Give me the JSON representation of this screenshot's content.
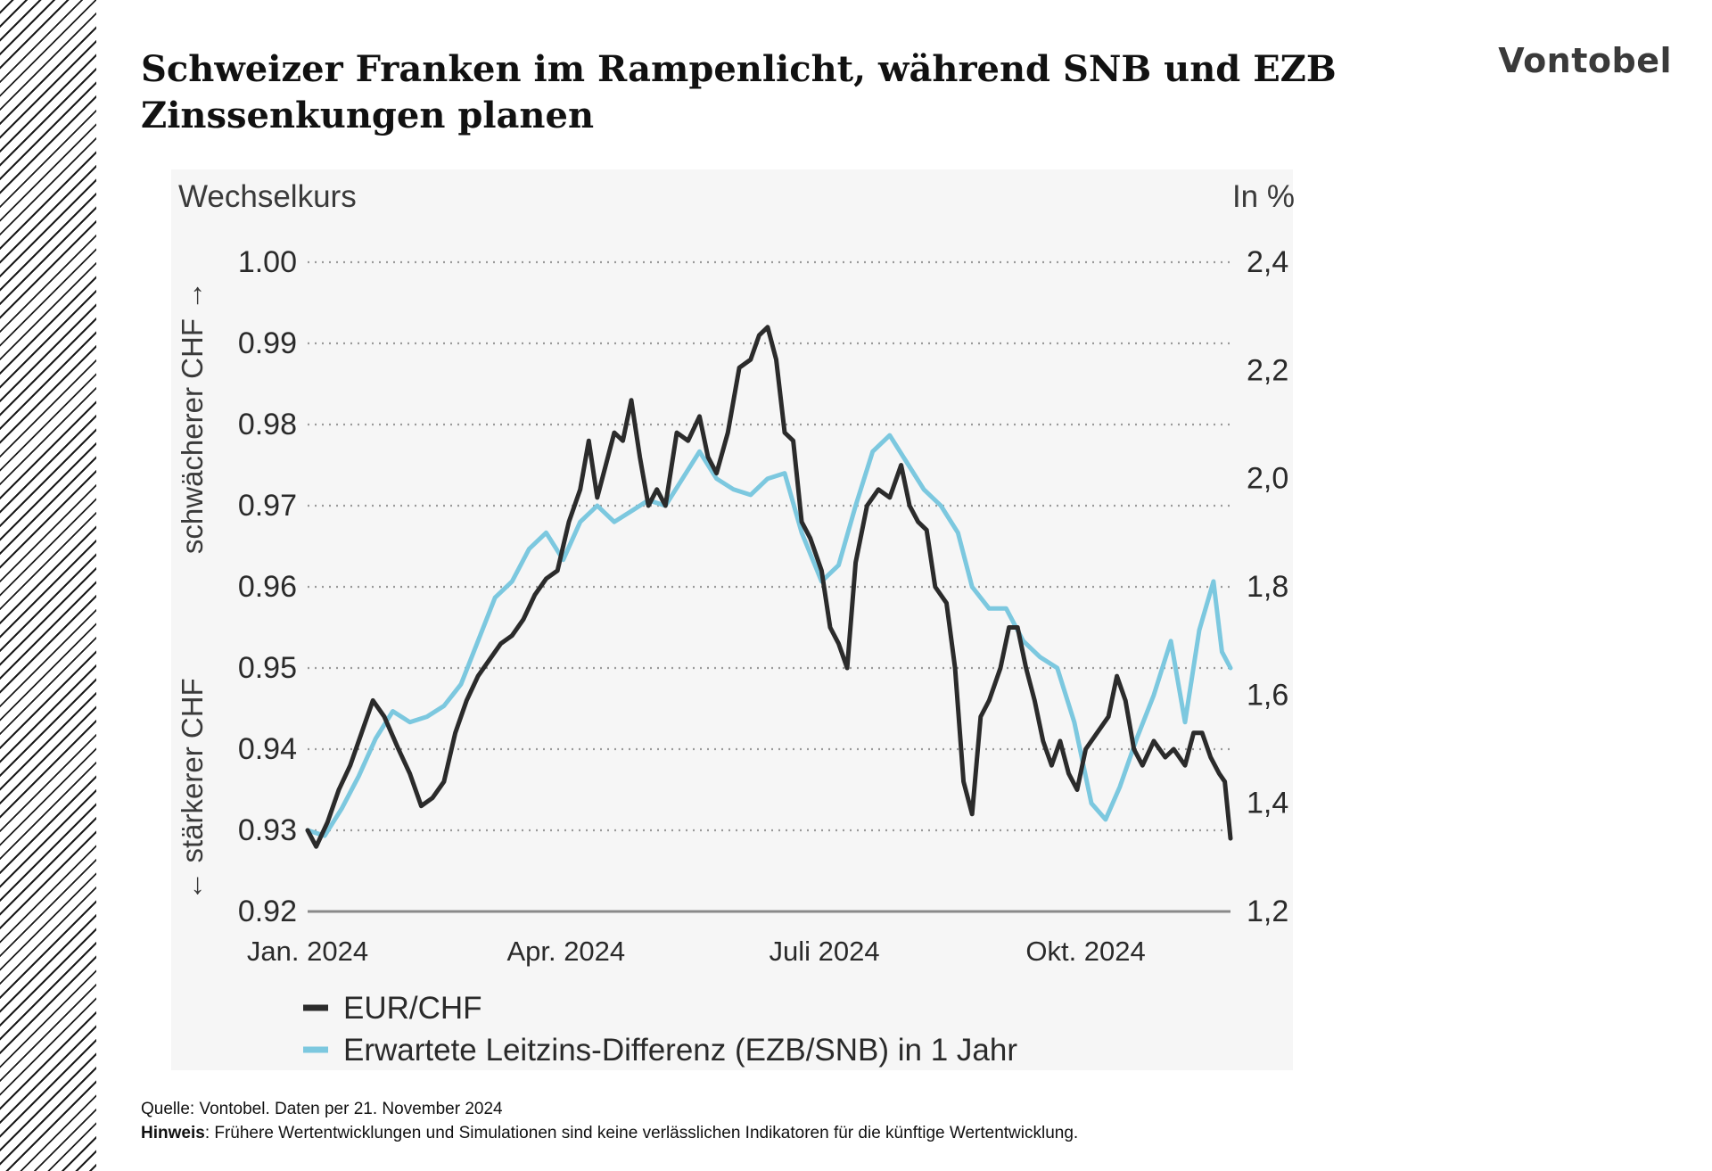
{
  "title": "Schweizer Franken im Rampenlicht, während SNB und EZB Zinssenkungen planen",
  "brand": "Vontobel",
  "footer": {
    "source": "Quelle: Vontobel. Daten per 21. November 2024",
    "note_label": "Hinweis",
    "note_text": ": Frühere Wertentwicklungen und Simulationen sind keine verlässlichen Indikatoren für die künftige Wertentwicklung."
  },
  "colors": {
    "eur_chf": "#2b2b2b",
    "rate_diff": "#7cc8df",
    "grid": "#9a9a9a",
    "panel": "#f6f6f6"
  },
  "chart_data": {
    "type": "line",
    "left_axis_title": "Wechselkurs",
    "right_axis_title": "In %",
    "left_axis_label_top": "schwächerer CHF →",
    "left_axis_label_bottom": "← stärkerer CHF",
    "ylim_left": [
      0.92,
      1.0
    ],
    "ylim_right": [
      1.2,
      2.4
    ],
    "yticks_left": [
      "1.00",
      "0.99",
      "0.98",
      "0.97",
      "0.96",
      "0.95",
      "0.94",
      "0.93",
      "0.92"
    ],
    "yticks_right": [
      "2,4",
      "2,2",
      "2,0",
      "1,8",
      "1,6",
      "1,4",
      "1,2"
    ],
    "xlim": [
      "2024-01-01",
      "2024-11-21"
    ],
    "x_ticks": [
      {
        "date": "2024-01-01",
        "label": "Jan. 2024"
      },
      {
        "date": "2024-04-01",
        "label": "Apr. 2024"
      },
      {
        "date": "2024-07-01",
        "label": "Juli 2024"
      },
      {
        "date": "2024-10-01",
        "label": "Okt. 2024"
      }
    ],
    "grid": "horizontal dotted",
    "legend_position": "bottom-left",
    "series": [
      {
        "name": "EUR/CHF",
        "axis": "left",
        "data": [
          [
            "2024-01-01",
            0.93
          ],
          [
            "2024-01-04",
            0.928
          ],
          [
            "2024-01-08",
            0.931
          ],
          [
            "2024-01-12",
            0.935
          ],
          [
            "2024-01-16",
            0.938
          ],
          [
            "2024-01-20",
            0.942
          ],
          [
            "2024-01-24",
            0.946
          ],
          [
            "2024-01-28",
            0.944
          ],
          [
            "2024-02-02",
            0.94
          ],
          [
            "2024-02-06",
            0.937
          ],
          [
            "2024-02-10",
            0.933
          ],
          [
            "2024-02-14",
            0.934
          ],
          [
            "2024-02-18",
            0.936
          ],
          [
            "2024-02-22",
            0.942
          ],
          [
            "2024-02-26",
            0.946
          ],
          [
            "2024-03-01",
            0.949
          ],
          [
            "2024-03-05",
            0.951
          ],
          [
            "2024-03-09",
            0.953
          ],
          [
            "2024-03-13",
            0.954
          ],
          [
            "2024-03-17",
            0.956
          ],
          [
            "2024-03-21",
            0.959
          ],
          [
            "2024-03-25",
            0.961
          ],
          [
            "2024-03-29",
            0.962
          ],
          [
            "2024-04-02",
            0.968
          ],
          [
            "2024-04-06",
            0.972
          ],
          [
            "2024-04-09",
            0.978
          ],
          [
            "2024-04-12",
            0.971
          ],
          [
            "2024-04-15",
            0.975
          ],
          [
            "2024-04-18",
            0.979
          ],
          [
            "2024-04-21",
            0.978
          ],
          [
            "2024-04-24",
            0.983
          ],
          [
            "2024-04-27",
            0.976
          ],
          [
            "2024-04-30",
            0.97
          ],
          [
            "2024-05-03",
            0.972
          ],
          [
            "2024-05-06",
            0.97
          ],
          [
            "2024-05-10",
            0.979
          ],
          [
            "2024-05-14",
            0.978
          ],
          [
            "2024-05-18",
            0.981
          ],
          [
            "2024-05-21",
            0.976
          ],
          [
            "2024-05-24",
            0.974
          ],
          [
            "2024-05-28",
            0.979
          ],
          [
            "2024-06-01",
            0.987
          ],
          [
            "2024-06-05",
            0.988
          ],
          [
            "2024-06-08",
            0.991
          ],
          [
            "2024-06-11",
            0.992
          ],
          [
            "2024-06-14",
            0.988
          ],
          [
            "2024-06-17",
            0.979
          ],
          [
            "2024-06-20",
            0.978
          ],
          [
            "2024-06-23",
            0.968
          ],
          [
            "2024-06-26",
            0.966
          ],
          [
            "2024-06-30",
            0.962
          ],
          [
            "2024-07-03",
            0.955
          ],
          [
            "2024-07-06",
            0.953
          ],
          [
            "2024-07-09",
            0.95
          ],
          [
            "2024-07-12",
            0.963
          ],
          [
            "2024-07-16",
            0.97
          ],
          [
            "2024-07-20",
            0.972
          ],
          [
            "2024-07-24",
            0.971
          ],
          [
            "2024-07-28",
            0.975
          ],
          [
            "2024-07-31",
            0.97
          ],
          [
            "2024-08-03",
            0.968
          ],
          [
            "2024-08-06",
            0.967
          ],
          [
            "2024-08-09",
            0.96
          ],
          [
            "2024-08-13",
            0.958
          ],
          [
            "2024-08-16",
            0.95
          ],
          [
            "2024-08-19",
            0.936
          ],
          [
            "2024-08-22",
            0.932
          ],
          [
            "2024-08-25",
            0.944
          ],
          [
            "2024-08-28",
            0.946
          ],
          [
            "2024-09-01",
            0.95
          ],
          [
            "2024-09-04",
            0.955
          ],
          [
            "2024-09-07",
            0.955
          ],
          [
            "2024-09-10",
            0.95
          ],
          [
            "2024-09-13",
            0.946
          ],
          [
            "2024-09-16",
            0.941
          ],
          [
            "2024-09-19",
            0.938
          ],
          [
            "2024-09-22",
            0.941
          ],
          [
            "2024-09-25",
            0.937
          ],
          [
            "2024-09-28",
            0.935
          ],
          [
            "2024-10-01",
            0.94
          ],
          [
            "2024-10-05",
            0.942
          ],
          [
            "2024-10-09",
            0.944
          ],
          [
            "2024-10-12",
            0.949
          ],
          [
            "2024-10-15",
            0.946
          ],
          [
            "2024-10-18",
            0.94
          ],
          [
            "2024-10-21",
            0.938
          ],
          [
            "2024-10-25",
            0.941
          ],
          [
            "2024-10-29",
            0.939
          ],
          [
            "2024-11-01",
            0.94
          ],
          [
            "2024-11-05",
            0.938
          ],
          [
            "2024-11-08",
            0.942
          ],
          [
            "2024-11-11",
            0.942
          ],
          [
            "2024-11-14",
            0.939
          ],
          [
            "2024-11-17",
            0.937
          ],
          [
            "2024-11-19",
            0.936
          ],
          [
            "2024-11-21",
            0.929
          ]
        ]
      },
      {
        "name": "Erwartete Leitzins-Differenz (EZB/SNB) in 1 Jahr",
        "axis": "right",
        "data": [
          [
            "2024-01-01",
            1.35
          ],
          [
            "2024-01-07",
            1.34
          ],
          [
            "2024-01-13",
            1.39
          ],
          [
            "2024-01-19",
            1.45
          ],
          [
            "2024-01-25",
            1.52
          ],
          [
            "2024-01-31",
            1.57
          ],
          [
            "2024-02-06",
            1.55
          ],
          [
            "2024-02-12",
            1.56
          ],
          [
            "2024-02-18",
            1.58
          ],
          [
            "2024-02-24",
            1.62
          ],
          [
            "2024-03-01",
            1.7
          ],
          [
            "2024-03-07",
            1.78
          ],
          [
            "2024-03-13",
            1.81
          ],
          [
            "2024-03-19",
            1.87
          ],
          [
            "2024-03-25",
            1.9
          ],
          [
            "2024-03-31",
            1.85
          ],
          [
            "2024-04-06",
            1.92
          ],
          [
            "2024-04-12",
            1.95
          ],
          [
            "2024-04-18",
            1.92
          ],
          [
            "2024-04-24",
            1.94
          ],
          [
            "2024-04-30",
            1.96
          ],
          [
            "2024-05-06",
            1.95
          ],
          [
            "2024-05-12",
            2.0
          ],
          [
            "2024-05-18",
            2.05
          ],
          [
            "2024-05-24",
            2.0
          ],
          [
            "2024-05-30",
            1.98
          ],
          [
            "2024-06-05",
            1.97
          ],
          [
            "2024-06-11",
            2.0
          ],
          [
            "2024-06-17",
            2.01
          ],
          [
            "2024-06-23",
            1.9
          ],
          [
            "2024-06-30",
            1.81
          ],
          [
            "2024-07-06",
            1.84
          ],
          [
            "2024-07-12",
            1.95
          ],
          [
            "2024-07-18",
            2.05
          ],
          [
            "2024-07-24",
            2.08
          ],
          [
            "2024-07-30",
            2.03
          ],
          [
            "2024-08-05",
            1.98
          ],
          [
            "2024-08-11",
            1.95
          ],
          [
            "2024-08-17",
            1.9
          ],
          [
            "2024-08-22",
            1.8
          ],
          [
            "2024-08-28",
            1.76
          ],
          [
            "2024-09-03",
            1.76
          ],
          [
            "2024-09-09",
            1.7
          ],
          [
            "2024-09-15",
            1.67
          ],
          [
            "2024-09-21",
            1.65
          ],
          [
            "2024-09-27",
            1.55
          ],
          [
            "2024-10-03",
            1.4
          ],
          [
            "2024-10-08",
            1.37
          ],
          [
            "2024-10-13",
            1.43
          ],
          [
            "2024-10-19",
            1.52
          ],
          [
            "2024-10-25",
            1.6
          ],
          [
            "2024-10-31",
            1.7
          ],
          [
            "2024-11-05",
            1.55
          ],
          [
            "2024-11-10",
            1.72
          ],
          [
            "2024-11-15",
            1.81
          ],
          [
            "2024-11-18",
            1.68
          ],
          [
            "2024-11-21",
            1.65
          ]
        ]
      }
    ]
  }
}
